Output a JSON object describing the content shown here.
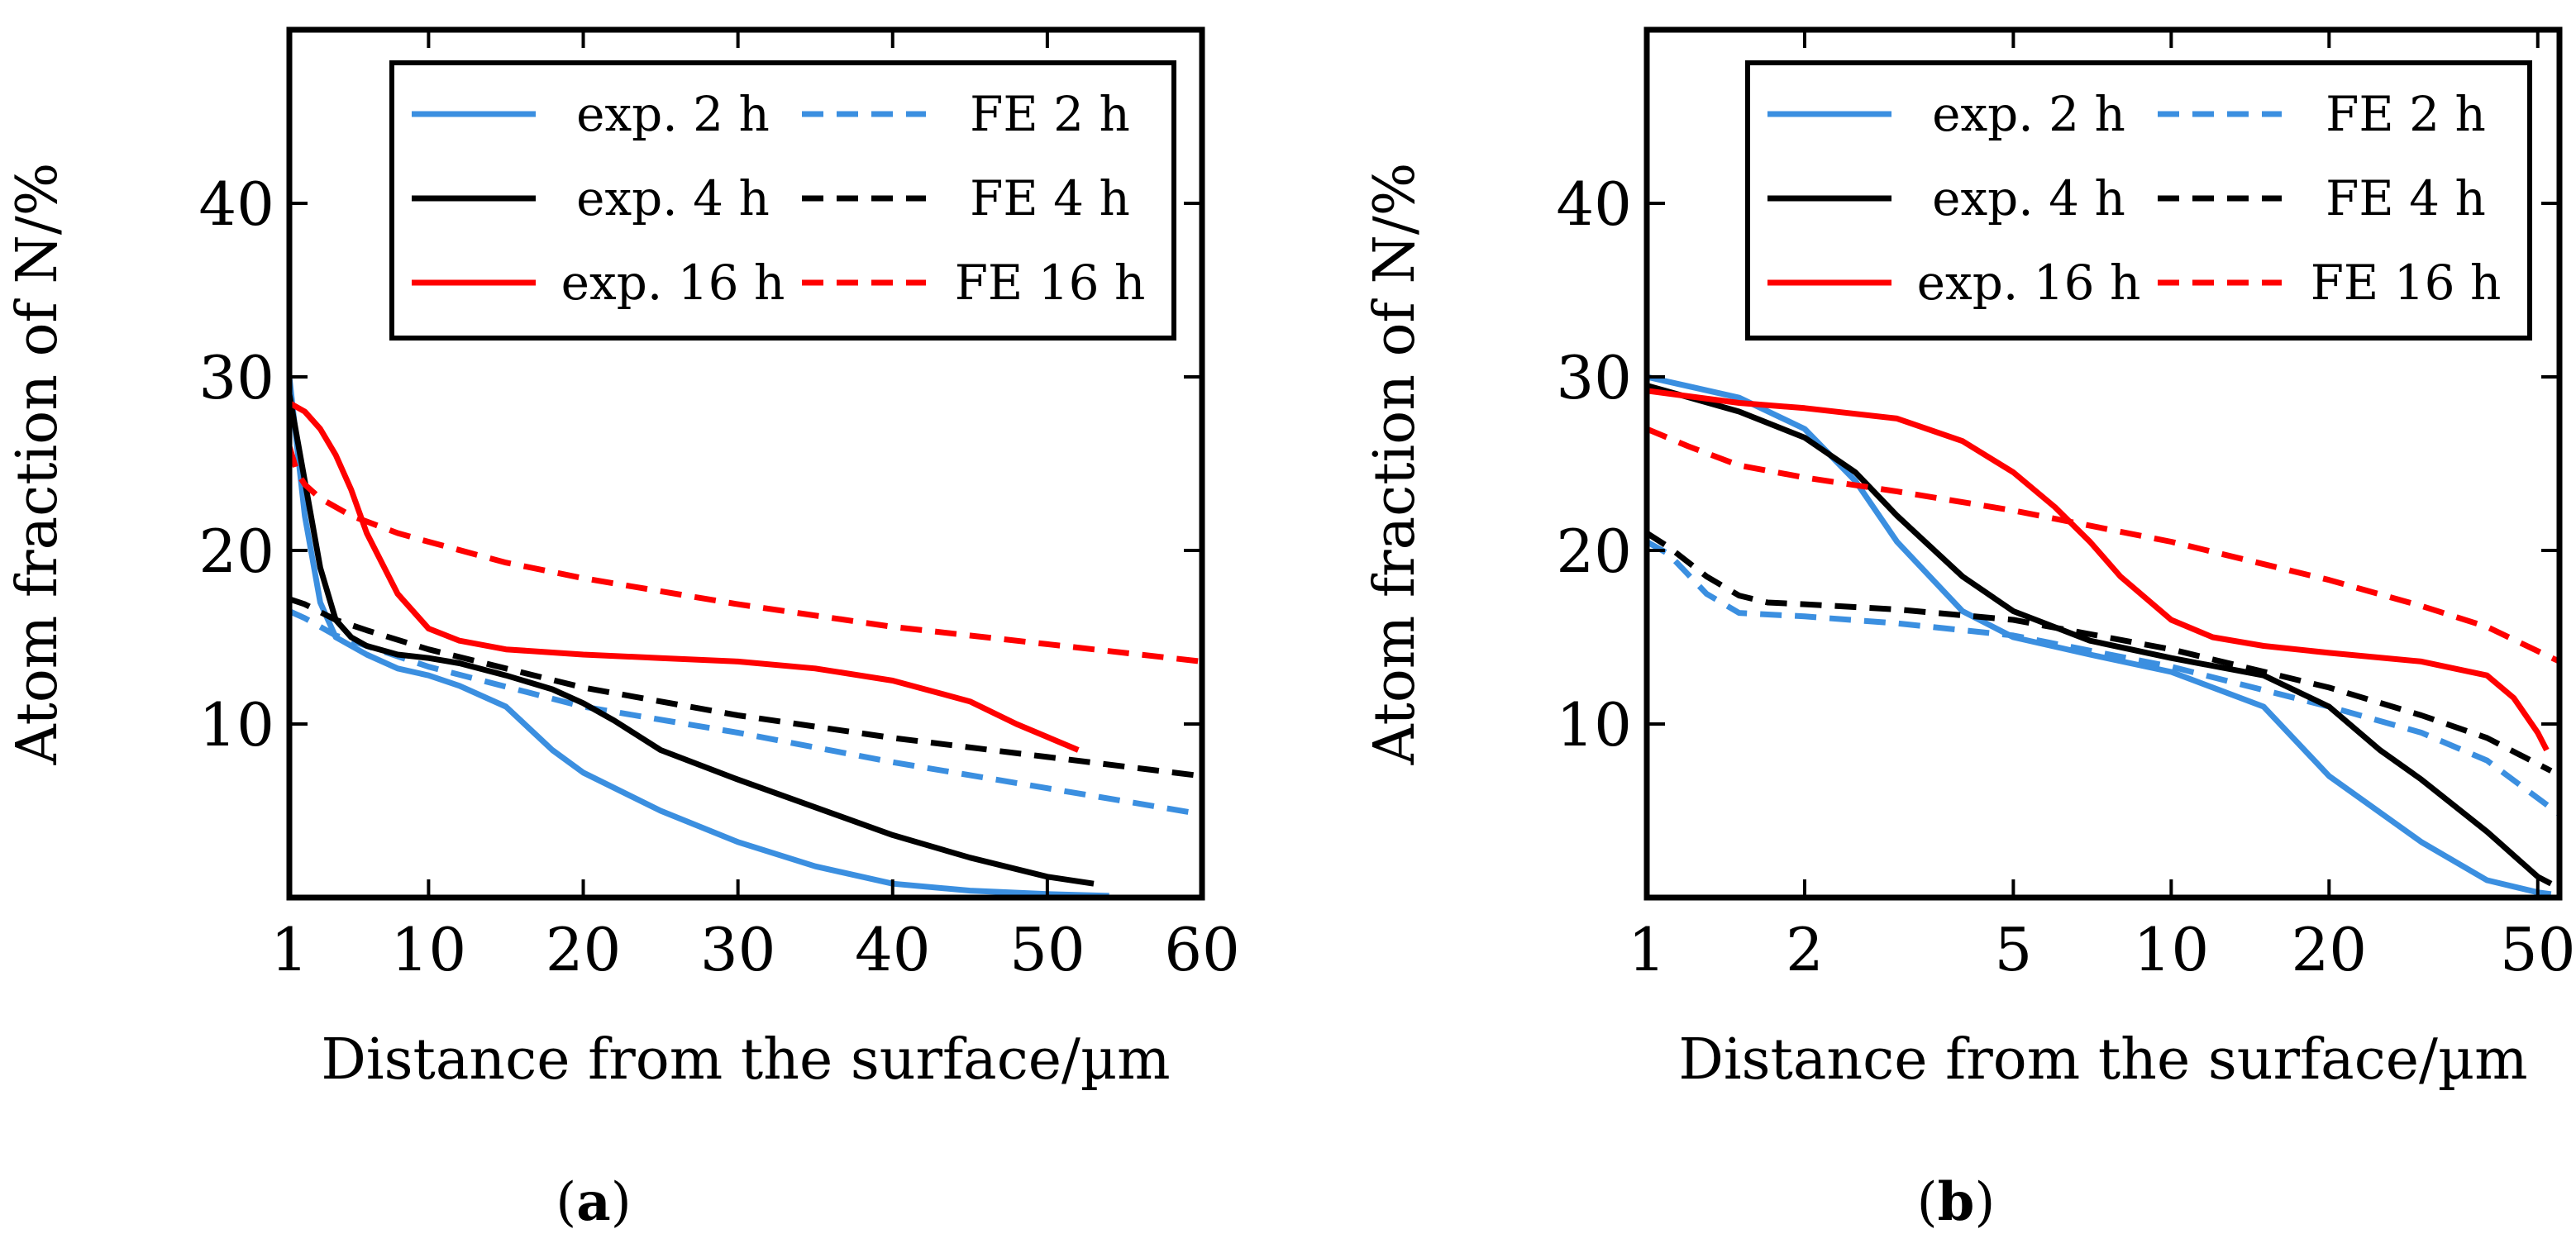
{
  "chart_data": [
    {
      "type": "line",
      "panel": "a",
      "caption_letter": "a",
      "caption_open": "(",
      "caption_close": ")",
      "xlabel": "Distance from the surface/µm",
      "ylabel": "Atom fraction of N/%",
      "xscale": "linear",
      "xlim": [
        1,
        60
      ],
      "ylim": [
        0,
        50
      ],
      "xticks": [
        1,
        10,
        20,
        30,
        40,
        50,
        60
      ],
      "yticks": [
        10,
        20,
        30,
        40
      ],
      "legend_position": "top-right",
      "series": [
        {
          "name": "exp. 2 h",
          "color": "#3b8fe0",
          "dash": "solid",
          "x": [
            1,
            2,
            3,
            4,
            6,
            8,
            10,
            12,
            15,
            18,
            20,
            25,
            30,
            35,
            40,
            45,
            50,
            54
          ],
          "y": [
            30,
            22,
            17,
            15,
            14,
            13.2,
            12.8,
            12.2,
            11,
            8.5,
            7.2,
            5,
            3.2,
            1.8,
            0.8,
            0.4,
            0.2,
            0.1
          ]
        },
        {
          "name": "FE 2 h",
          "color": "#3b8fe0",
          "dash": "dashed",
          "x": [
            1,
            2,
            4,
            6,
            10,
            20,
            30,
            40,
            50,
            60
          ],
          "y": [
            16.5,
            16.1,
            15.1,
            14.5,
            13.3,
            11,
            9.5,
            7.8,
            6.3,
            4.8
          ]
        },
        {
          "name": "exp. 4 h",
          "color": "#000000",
          "dash": "solid",
          "x": [
            1,
            2,
            3,
            4,
            5,
            6,
            8,
            10,
            12,
            15,
            18,
            20,
            22,
            25,
            30,
            35,
            40,
            45,
            50,
            53
          ],
          "y": [
            29,
            24,
            19,
            16,
            15,
            14.5,
            14,
            13.8,
            13.5,
            12.8,
            12,
            11.2,
            10.2,
            8.5,
            6.8,
            5.2,
            3.6,
            2.3,
            1.2,
            0.8
          ]
        },
        {
          "name": "FE 4 h",
          "color": "#000000",
          "dash": "dashed",
          "x": [
            1,
            2,
            4,
            6,
            10,
            20,
            30,
            40,
            50,
            60
          ],
          "y": [
            17.2,
            16.9,
            16,
            15.4,
            14.3,
            12.1,
            10.5,
            9.2,
            8.1,
            7
          ]
        },
        {
          "name": "exp. 16 h",
          "color": "#ff0000",
          "dash": "solid",
          "x": [
            1,
            2,
            3,
            4,
            5,
            6,
            8,
            10,
            12,
            15,
            20,
            25,
            30,
            35,
            40,
            45,
            48,
            52
          ],
          "y": [
            28.5,
            28,
            27,
            25.5,
            23.5,
            21,
            17.5,
            15.5,
            14.8,
            14.3,
            14,
            13.8,
            13.6,
            13.2,
            12.5,
            11.3,
            10,
            8.5
          ]
        },
        {
          "name": "FE 16 h",
          "color": "#ff0000",
          "dash": "dashed",
          "x": [
            1,
            1.5,
            2,
            3,
            5,
            8,
            10,
            15,
            20,
            30,
            40,
            50,
            60
          ],
          "y": [
            26,
            24.5,
            23.8,
            23,
            22,
            21,
            20.5,
            19.3,
            18.4,
            16.9,
            15.6,
            14.6,
            13.6
          ]
        }
      ]
    },
    {
      "type": "line",
      "panel": "b",
      "caption_letter": "b",
      "caption_open": "(",
      "caption_close": ")",
      "xlabel": "Distance from the surface/µm",
      "ylabel": "Atom fraction of N/%",
      "xscale": "log",
      "xlim": [
        1,
        55
      ],
      "ylim": [
        0,
        50
      ],
      "xticks": [
        1,
        2,
        5,
        10,
        20,
        50
      ],
      "yticks": [
        10,
        20,
        30,
        40
      ],
      "legend_position": "top-right",
      "series": [
        {
          "name": "exp. 2 h",
          "color": "#3b8fe0",
          "dash": "solid",
          "x": [
            1,
            1.5,
            2,
            2.5,
            3,
            4,
            5,
            7,
            10,
            15,
            20,
            30,
            40,
            50,
            53
          ],
          "y": [
            30,
            28.8,
            27,
            24,
            20.5,
            16.5,
            15,
            14,
            13,
            11,
            7,
            3.2,
            1,
            0.3,
            0.2
          ]
        },
        {
          "name": "FE 2 h",
          "color": "#3b8fe0",
          "dash": "dashed",
          "x": [
            1,
            1.1,
            1.3,
            1.5,
            2,
            3,
            5,
            10,
            20,
            30,
            40,
            55
          ],
          "y": [
            20.5,
            19.8,
            17.5,
            16.4,
            16.2,
            15.8,
            15.1,
            13.3,
            11,
            9.5,
            7.9,
            4.8
          ]
        },
        {
          "name": "exp. 4 h",
          "color": "#000000",
          "dash": "solid",
          "x": [
            1,
            1.5,
            2,
            2.5,
            3,
            4,
            5,
            7,
            10,
            15,
            20,
            25,
            30,
            40,
            50,
            53
          ],
          "y": [
            29.5,
            28,
            26.5,
            24.5,
            22,
            18.5,
            16.5,
            14.8,
            13.8,
            12.8,
            11,
            8.5,
            6.8,
            3.8,
            1.2,
            0.8
          ]
        },
        {
          "name": "FE 4 h",
          "color": "#000000",
          "dash": "dashed",
          "x": [
            1,
            1.1,
            1.3,
            1.5,
            1.7,
            2,
            3,
            5,
            10,
            20,
            30,
            40,
            53
          ],
          "y": [
            21,
            20.2,
            18.5,
            17.4,
            17,
            16.9,
            16.6,
            16,
            14.3,
            12.1,
            10.5,
            9.2,
            7.3
          ]
        },
        {
          "name": "exp. 16 h",
          "color": "#ff0000",
          "dash": "solid",
          "x": [
            1,
            1.5,
            2,
            3,
            4,
            5,
            6,
            7,
            8,
            10,
            12,
            15,
            20,
            30,
            40,
            45,
            50,
            52
          ],
          "y": [
            29.2,
            28.5,
            28.2,
            27.6,
            26.3,
            24.5,
            22.5,
            20.5,
            18.5,
            16,
            15,
            14.5,
            14.1,
            13.6,
            12.8,
            11.5,
            9.5,
            8.5
          ]
        },
        {
          "name": "FE 16 h",
          "color": "#ff0000",
          "dash": "dashed",
          "x": [
            1,
            1.2,
            1.5,
            2,
            3,
            5,
            10,
            20,
            30,
            40,
            55
          ],
          "y": [
            27,
            26,
            24.9,
            24.2,
            23.4,
            22.3,
            20.5,
            18.3,
            16.8,
            15.6,
            13.6
          ]
        }
      ]
    }
  ]
}
